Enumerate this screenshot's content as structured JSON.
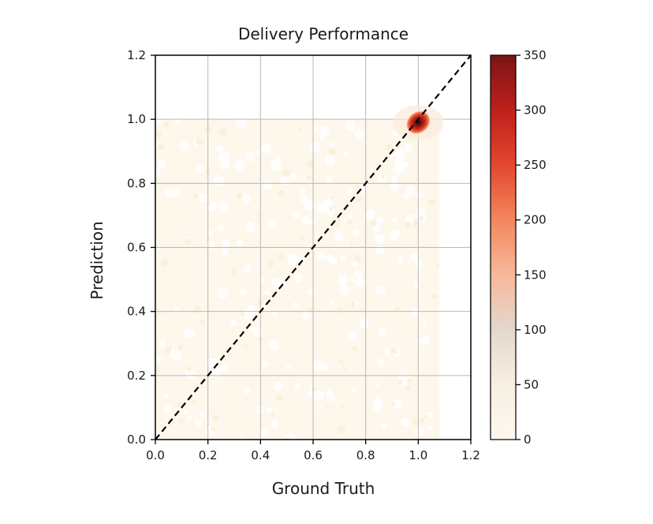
{
  "chart_data": {
    "type": "heatmap",
    "title": "Delivery Performance",
    "xlabel": "Ground Truth",
    "ylabel": "Prediction",
    "xlim": [
      0,
      1.2
    ],
    "ylim": [
      0,
      1.2
    ],
    "xticks": [
      "0.0",
      "0.2",
      "0.4",
      "0.6",
      "0.8",
      "1.0",
      "1.2"
    ],
    "yticks": [
      "0.0",
      "0.2",
      "0.4",
      "0.6",
      "0.8",
      "1.0",
      "1.2"
    ],
    "grid": true,
    "reference_line": {
      "from": [
        0,
        0
      ],
      "to": [
        1.2,
        1.2
      ],
      "style": "dashed",
      "color": "#000000"
    },
    "hotspot": {
      "x": 1.0,
      "y": 0.99,
      "peak_count": 350
    },
    "colorbar": {
      "min": 0,
      "max": 350,
      "ticks": [
        "0",
        "50",
        "100",
        "150",
        "200",
        "250",
        "300",
        "350"
      ],
      "colormap": [
        "#fff8ee",
        "#f7efe3",
        "#e3d8cc",
        "#f7b89a",
        "#f3875d",
        "#e2482f",
        "#c0201b",
        "#7a1515"
      ]
    }
  }
}
